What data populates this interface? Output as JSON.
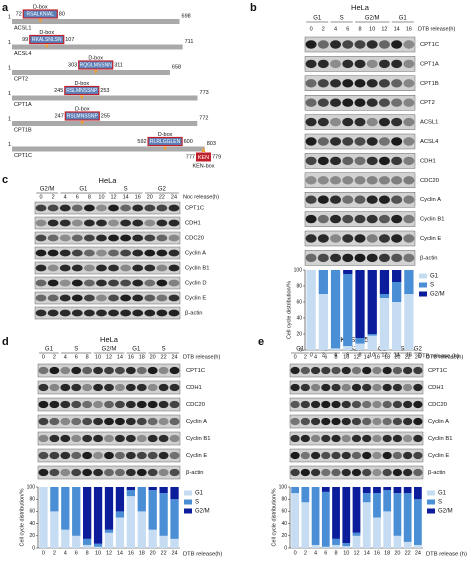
{
  "panel_labels": [
    "a",
    "b",
    "c",
    "d",
    "e"
  ],
  "panel_a": {
    "rows": [
      {
        "name": "ACSL1",
        "start": 1,
        "motif_start": 72,
        "motif": "RSALKNIAL",
        "motif_end": 80,
        "length": 698,
        "motif_type": "D-box"
      },
      {
        "name": "ACSL4",
        "start": 1,
        "motif_start": 99,
        "motif": "RKALSNLSN",
        "motif_end": 107,
        "length": 711,
        "motif_type": "D-box"
      },
      {
        "name": "CPT2",
        "start": 1,
        "motif_start": 303,
        "motif": "RQGLMSSNN",
        "motif_end": 311,
        "length": 658,
        "motif_type": "D-box"
      },
      {
        "name": "CPT1A",
        "start": 1,
        "motif_start": 245,
        "motif": "RSLMNSSNP",
        "motif_end": 253,
        "length": 773,
        "motif_type": "D-box"
      },
      {
        "name": "CPT1B",
        "start": 1,
        "motif_start": 247,
        "motif": "RSLMNSSNP",
        "motif_end": 255,
        "length": 772,
        "motif_type": "D-box"
      },
      {
        "name": "CPT1C",
        "start": 1,
        "motif_start": 592,
        "motif": "RLRLGGLEN",
        "motif_end": 600,
        "length": 803,
        "motif_type": "D-box"
      }
    ],
    "ken": {
      "motif_start": 777,
      "motif": "KEN",
      "motif_end": 779,
      "motif_type": "KEN-box"
    }
  },
  "panel_b": {
    "cell_line": "HeLa",
    "phases": [
      "G1",
      "S",
      "G2/M",
      "G1"
    ],
    "times": [
      0,
      2,
      4,
      6,
      8,
      10,
      12,
      14,
      16
    ],
    "time_label": "DTB release(h)",
    "proteins": [
      "CPT1C",
      "CPT1A",
      "CPT1B",
      "CPT2",
      "ACSL1",
      "ACSL4",
      "CDH1",
      "CDC20",
      "Cyclin A",
      "Cyclin B1",
      "Cyclin E",
      "β-actin"
    ]
  },
  "panel_c": {
    "cell_line": "HeLa",
    "phases": [
      "G2/M",
      "G1",
      "S",
      "G2"
    ],
    "times": [
      0,
      2,
      4,
      6,
      8,
      10,
      12,
      14,
      16,
      20,
      22,
      24
    ],
    "time_label": "Noc release(h)",
    "proteins": [
      "CPT1C",
      "CDH1",
      "CDC20",
      "Cyclin A",
      "Cyclin B1",
      "Cyclin D",
      "Cyclin E",
      "β-actin"
    ]
  },
  "panel_d": {
    "cell_line": "HeLa",
    "phases": [
      "G1",
      "S",
      "G2/M",
      "G1",
      "S"
    ],
    "times": [
      0,
      2,
      4,
      6,
      8,
      10,
      12,
      14,
      16,
      18,
      20,
      22,
      24
    ],
    "time_label": "DTB release(h)",
    "proteins": [
      "CPT1C",
      "CDH1",
      "CDC20",
      "Cyclin A",
      "Cyclin B1",
      "Cyclin E",
      "β-actin"
    ]
  },
  "panel_e": {
    "cell_line": "KYSE450",
    "phases": [
      "G1",
      "S",
      "G2/M",
      "G1",
      "S",
      "G2"
    ],
    "times": [
      0,
      2,
      4,
      6,
      8,
      10,
      12,
      14,
      16,
      18,
      20,
      22,
      24
    ],
    "time_label": "DTB release(h)",
    "proteins": [
      "CPT1C",
      "CDH1",
      "CDC20",
      "Cyclin A",
      "Cyclin B1",
      "Cyclin E",
      "β-actin"
    ]
  },
  "chart_data": [
    {
      "type": "bar",
      "stacked": true,
      "ylabel": "Cell cycle distribution/%",
      "xlabel": "DTB release (h)",
      "categories": [
        0,
        2,
        4,
        6,
        8,
        10,
        12,
        14,
        16
      ],
      "series": [
        {
          "name": "G1",
          "color": "#c6dcf2",
          "values": [
            100,
            70,
            2,
            5,
            8,
            18,
            65,
            60,
            70
          ]
        },
        {
          "name": "S",
          "color": "#4a8fd6",
          "values": [
            0,
            30,
            98,
            90,
            7,
            2,
            5,
            25,
            30
          ]
        },
        {
          "name": "G2/M",
          "color": "#0c1d9c",
          "values": [
            0,
            0,
            0,
            5,
            85,
            80,
            30,
            15,
            0
          ]
        }
      ],
      "ylim": [
        0,
        100
      ],
      "yticks": [
        0,
        20,
        40,
        60,
        80,
        100
      ]
    },
    {
      "type": "bar",
      "stacked": true,
      "ylabel": "Cell cycle distribution/%",
      "xlabel": "DTB release(h)",
      "categories": [
        0,
        2,
        4,
        6,
        8,
        10,
        12,
        14,
        16,
        18,
        20,
        22,
        24
      ],
      "series": [
        {
          "name": "G1",
          "color": "#c6dcf2",
          "values": [
            100,
            60,
            30,
            20,
            5,
            2,
            25,
            50,
            85,
            60,
            30,
            20,
            15
          ]
        },
        {
          "name": "S",
          "color": "#4a8fd6",
          "values": [
            0,
            40,
            70,
            80,
            10,
            5,
            5,
            10,
            10,
            40,
            65,
            70,
            65
          ]
        },
        {
          "name": "G2/M",
          "color": "#0c1d9c",
          "values": [
            0,
            0,
            0,
            0,
            85,
            93,
            70,
            40,
            5,
            0,
            5,
            10,
            20
          ]
        }
      ],
      "ylim": [
        0,
        100
      ],
      "yticks": [
        0,
        20,
        40,
        60,
        80,
        100
      ]
    },
    {
      "type": "bar",
      "stacked": true,
      "ylabel": "Cell cycle distribution/%",
      "xlabel": "DTB release (h)",
      "categories": [
        0,
        2,
        4,
        6,
        8,
        10,
        12,
        14,
        16,
        18,
        20,
        22,
        24
      ],
      "series": [
        {
          "name": "G1",
          "color": "#c6dcf2",
          "values": [
            90,
            75,
            5,
            2,
            5,
            3,
            20,
            75,
            50,
            60,
            20,
            10,
            5
          ]
        },
        {
          "name": "S",
          "color": "#4a8fd6",
          "values": [
            10,
            25,
            95,
            90,
            10,
            5,
            5,
            15,
            40,
            35,
            70,
            80,
            75
          ]
        },
        {
          "name": "G2/M",
          "color": "#0c1d9c",
          "values": [
            0,
            0,
            0,
            8,
            85,
            92,
            75,
            10,
            10,
            5,
            10,
            10,
            20
          ]
        }
      ],
      "ylim": [
        0,
        100
      ],
      "yticks": [
        0,
        20,
        40,
        60,
        80,
        100
      ]
    }
  ]
}
